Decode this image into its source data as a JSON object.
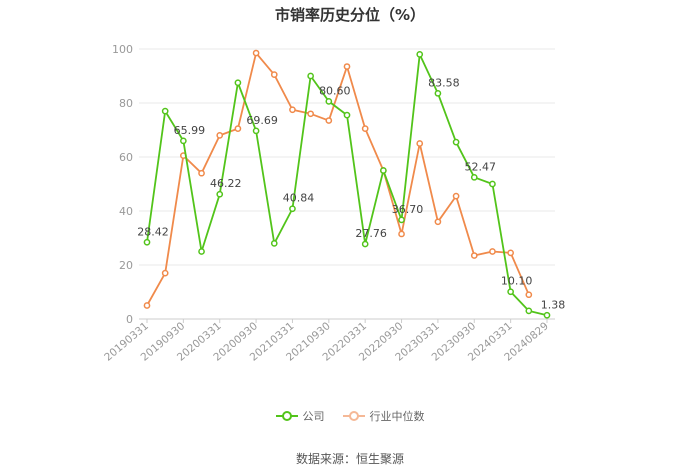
{
  "chart_data": {
    "type": "line",
    "title": "市销率历史分位（%）",
    "ylim": [
      0,
      100
    ],
    "yticks": [
      0,
      20,
      40,
      60,
      80,
      100
    ],
    "x_tick_labels": [
      "20190331",
      "20190930",
      "20200331",
      "20200930",
      "20210331",
      "20210930",
      "20220331",
      "20220930",
      "20230331",
      "20230930",
      "20240331",
      "20240829"
    ],
    "x_tick_indices": [
      0,
      2,
      4,
      6,
      8,
      10,
      12,
      14,
      16,
      18,
      20,
      22
    ],
    "grid": true,
    "legend_position": "bottom",
    "series": [
      {
        "name": "公司",
        "color": "#52c41a",
        "values": [
          28.42,
          77,
          65.99,
          25,
          46.22,
          87.5,
          69.69,
          28,
          40.84,
          90,
          80.6,
          75.5,
          27.76,
          55,
          36.7,
          98,
          83.58,
          65.5,
          52.47,
          50,
          10.1,
          3,
          1.38
        ]
      },
      {
        "name": "行业中位数",
        "color": "#f08a4b",
        "values": [
          5,
          17,
          60.5,
          54,
          68,
          70.5,
          98.5,
          90.5,
          77.5,
          76,
          73.5,
          93.5,
          70.5,
          55,
          31.5,
          65,
          36,
          45.5,
          23.5,
          25,
          24.5,
          9
        ]
      }
    ],
    "data_labels": [
      {
        "series": 0,
        "index": 0,
        "text": "28.42"
      },
      {
        "series": 0,
        "index": 2,
        "text": "65.99"
      },
      {
        "series": 0,
        "index": 4,
        "text": "46.22"
      },
      {
        "series": 0,
        "index": 6,
        "text": "69.69"
      },
      {
        "series": 0,
        "index": 8,
        "text": "40.84"
      },
      {
        "series": 0,
        "index": 10,
        "text": "80.60"
      },
      {
        "series": 0,
        "index": 12,
        "text": "27.76"
      },
      {
        "series": 0,
        "index": 14,
        "text": "36.70"
      },
      {
        "series": 0,
        "index": 16,
        "text": "83.58"
      },
      {
        "series": 0,
        "index": 18,
        "text": "52.47"
      },
      {
        "series": 0,
        "index": 20,
        "text": "10.10"
      },
      {
        "series": 0,
        "index": 22,
        "text": "1.38"
      }
    ]
  },
  "legend": {
    "company_label": "公司",
    "industry_label": "行业中位数"
  },
  "source": "数据来源：恒生聚源"
}
